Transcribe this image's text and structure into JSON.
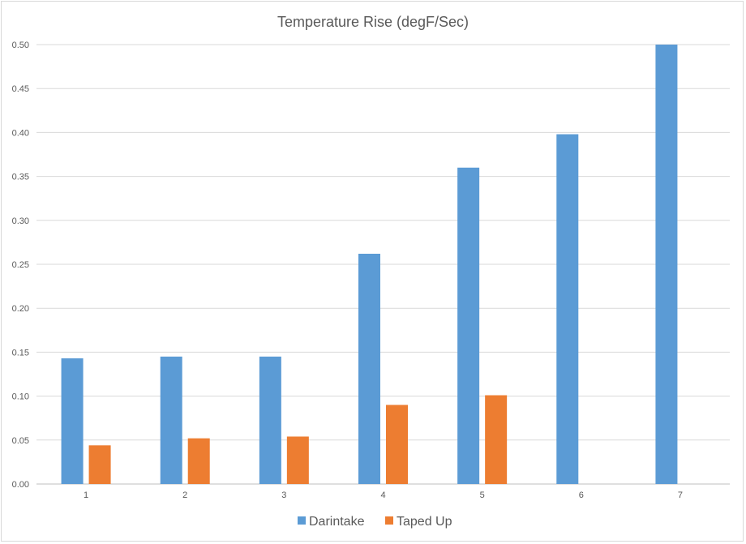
{
  "chart_data": {
    "type": "bar",
    "title": "Temperature Rise (degF/Sec)",
    "xlabel": "",
    "ylabel": "",
    "categories": [
      "1",
      "2",
      "3",
      "4",
      "5",
      "6",
      "7"
    ],
    "series": [
      {
        "name": "Darintake",
        "color": "#5b9bd5",
        "values": [
          0.143,
          0.145,
          0.145,
          0.262,
          0.36,
          0.398,
          0.5
        ]
      },
      {
        "name": "Taped Up",
        "color": "#ed7d31",
        "values": [
          0.044,
          0.052,
          0.054,
          0.09,
          0.101,
          null,
          null
        ]
      }
    ],
    "ylim": [
      0,
      0.5
    ],
    "yticks": [
      "0.00",
      "0.05",
      "0.10",
      "0.15",
      "0.20",
      "0.25",
      "0.30",
      "0.35",
      "0.40",
      "0.45",
      "0.50"
    ],
    "grid": true,
    "legend_position": "bottom"
  }
}
